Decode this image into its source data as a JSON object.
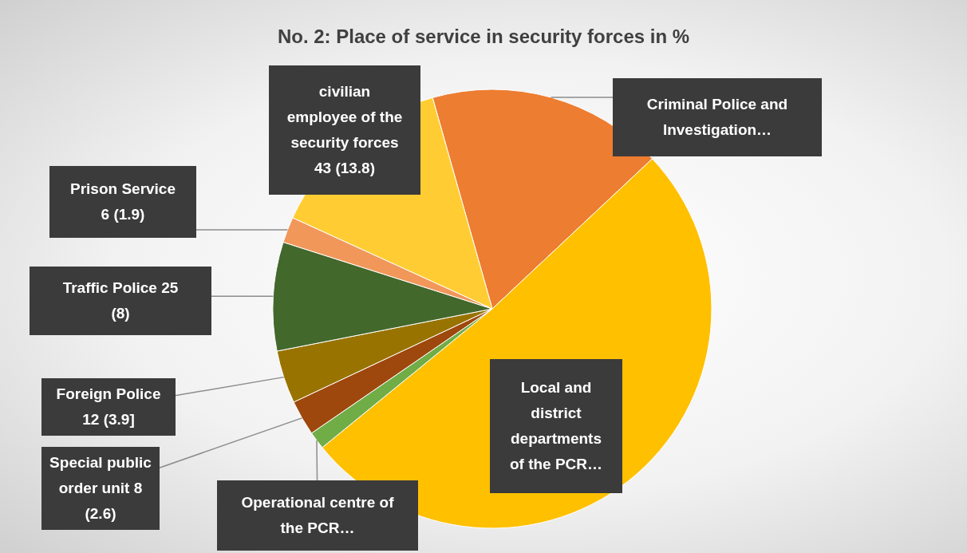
{
  "chart_data": {
    "type": "pie",
    "title": "No. 2: Place of service in security forces in %",
    "categories": [
      "Criminal Police and Investigation…",
      "Local and district departments of the PCR…",
      "Operational centre of the PCR…",
      "Special public order unit 8 (2.6)",
      "Foreign Police 12 (3.9]",
      "Traffic Police 25 (8)",
      "Prison Service 6 (1.9)",
      "civilian employee of the security forces 43 (13.8)"
    ],
    "values": [
      17.4,
      51.1,
      1.3,
      2.6,
      3.9,
      8,
      1.9,
      13.8
    ],
    "colors": [
      "#ed7d31",
      "#ffc000",
      "#70ad47",
      "#9e480e",
      "#997300",
      "#43682b",
      "#f1975a",
      "#ffcd33"
    ],
    "legend": false
  }
}
